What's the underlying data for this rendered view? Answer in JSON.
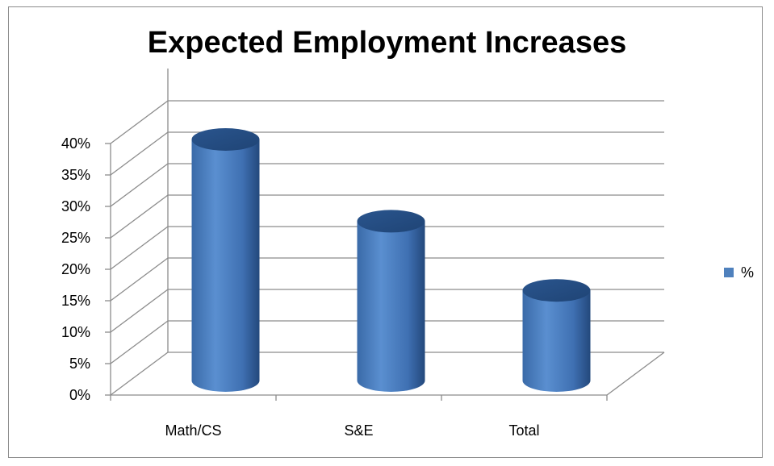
{
  "chart_data": {
    "type": "bar",
    "style": "3d-cylinder",
    "title": "Expected Employment Increases",
    "categories": [
      "Math/CS",
      "S&E",
      "Total"
    ],
    "series": [
      {
        "name": "%",
        "values": [
          0.4,
          0.27,
          0.16
        ],
        "color": "#4f81bd"
      }
    ],
    "ylim": [
      0,
      0.4
    ],
    "ytick_values": [
      0,
      0.05,
      0.1,
      0.15,
      0.2,
      0.25,
      0.3,
      0.35,
      0.4
    ],
    "ytick_labels": [
      "0%",
      "5%",
      "10%",
      "15%",
      "20%",
      "25%",
      "30%",
      "35%",
      "40%"
    ],
    "grid": true,
    "legend_position": "right",
    "colors": {
      "bar": "#4f81bd",
      "bar_dark": "#2d5a94",
      "grid": "#8c8c8c"
    }
  }
}
